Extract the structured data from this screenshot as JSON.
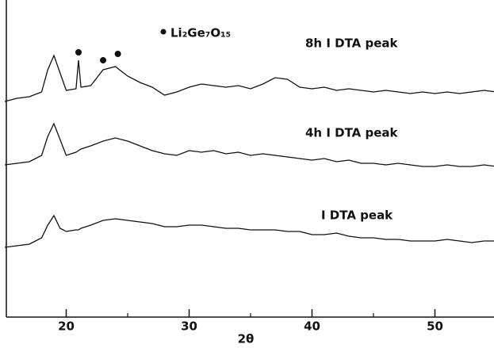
{
  "chart_data": {
    "type": "line",
    "x_label": "2θ",
    "legend_label": "Li₂Ge₇O₁₅",
    "x": [
      15,
      16,
      17,
      18,
      18.5,
      19,
      19.5,
      20,
      20.8,
      21,
      21.2,
      22,
      23,
      24,
      25,
      26,
      27,
      28,
      29,
      30,
      31,
      32,
      33,
      34,
      35,
      36,
      37,
      38,
      39,
      40,
      41,
      42,
      43,
      44,
      45,
      46,
      47,
      48,
      49,
      50,
      51,
      52,
      53,
      54,
      55
    ],
    "series": [
      {
        "name": "8h I DTA peak",
        "color": "#111111",
        "values": [
          68,
          69,
          69.5,
          71,
          78,
          82.5,
          77,
          71.5,
          72,
          81,
          72.5,
          73,
          78,
          79,
          76,
          74,
          72.5,
          70,
          71,
          72.5,
          73.5,
          73,
          72.5,
          73,
          72,
          73.5,
          75.5,
          75,
          72.5,
          72,
          72.5,
          71.5,
          72,
          71.5,
          71,
          71.5,
          71,
          70.5,
          71,
          70.5,
          71,
          70.5,
          71,
          71.5,
          71
        ]
      },
      {
        "name": "4h I DTA peak",
        "color": "#111111",
        "values": [
          48,
          48.5,
          49,
          51,
          57,
          61,
          56,
          51,
          52,
          52.5,
          53,
          54,
          55.5,
          56.5,
          55.5,
          54,
          52.5,
          51.5,
          51,
          52.5,
          52,
          52.5,
          51.5,
          52,
          51,
          51.5,
          51,
          50.5,
          50,
          49.5,
          50,
          49,
          49.5,
          48.5,
          48.5,
          48,
          48.5,
          48,
          47.5,
          47.5,
          48,
          47.5,
          47.5,
          48,
          47.5
        ]
      },
      {
        "name": "I DTA peak",
        "color": "#111111",
        "values": [
          22,
          22.5,
          23,
          25,
          29,
          32,
          28,
          27,
          27.5,
          27.5,
          28,
          29,
          30.5,
          31,
          30.5,
          30,
          29.5,
          28.5,
          28.5,
          29,
          29,
          28.5,
          28,
          28,
          27.5,
          27.5,
          27.5,
          27,
          27,
          26,
          26,
          26.5,
          25.5,
          25,
          25,
          24.5,
          24.5,
          24,
          24,
          24,
          24.5,
          24,
          23.5,
          24,
          24
        ]
      }
    ],
    "marker_x": [
      21,
      23,
      24.2
    ],
    "marker_y": [
      83.5,
      81,
      83
    ],
    "xlim": [
      15,
      55
    ],
    "ylim": [
      0,
      100
    ],
    "xticks": [
      20,
      30,
      40,
      50
    ],
    "minor_xticks": [
      25,
      35,
      45
    ]
  }
}
